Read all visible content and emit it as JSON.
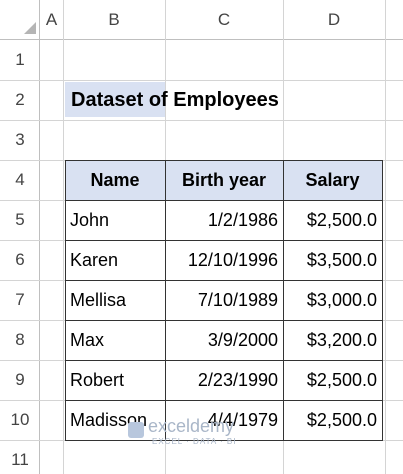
{
  "sheet": {
    "columns": [
      "A",
      "B",
      "C",
      "D"
    ],
    "rows": [
      "1",
      "2",
      "3",
      "4",
      "5",
      "6",
      "7",
      "8",
      "9",
      "10",
      "11"
    ]
  },
  "title": "Dataset of Employees",
  "table": {
    "header": [
      "Name",
      "Birth year",
      "Salary"
    ],
    "rows": [
      [
        "John",
        "1/2/1986",
        "$2,500.0"
      ],
      [
        "Karen",
        "12/10/1996",
        "$3,500.0"
      ],
      [
        "Mellisa",
        "7/10/1989",
        "$3,000.0"
      ],
      [
        "Max",
        "3/9/2000",
        "$3,200.0"
      ],
      [
        "Robert",
        "2/23/1990",
        "$2,500.0"
      ],
      [
        "Madisson",
        "4/4/1979",
        "$2,500.0"
      ]
    ]
  },
  "watermark": {
    "name": "exceldemy",
    "tagline": "EXCEL · DATA · BI"
  }
}
